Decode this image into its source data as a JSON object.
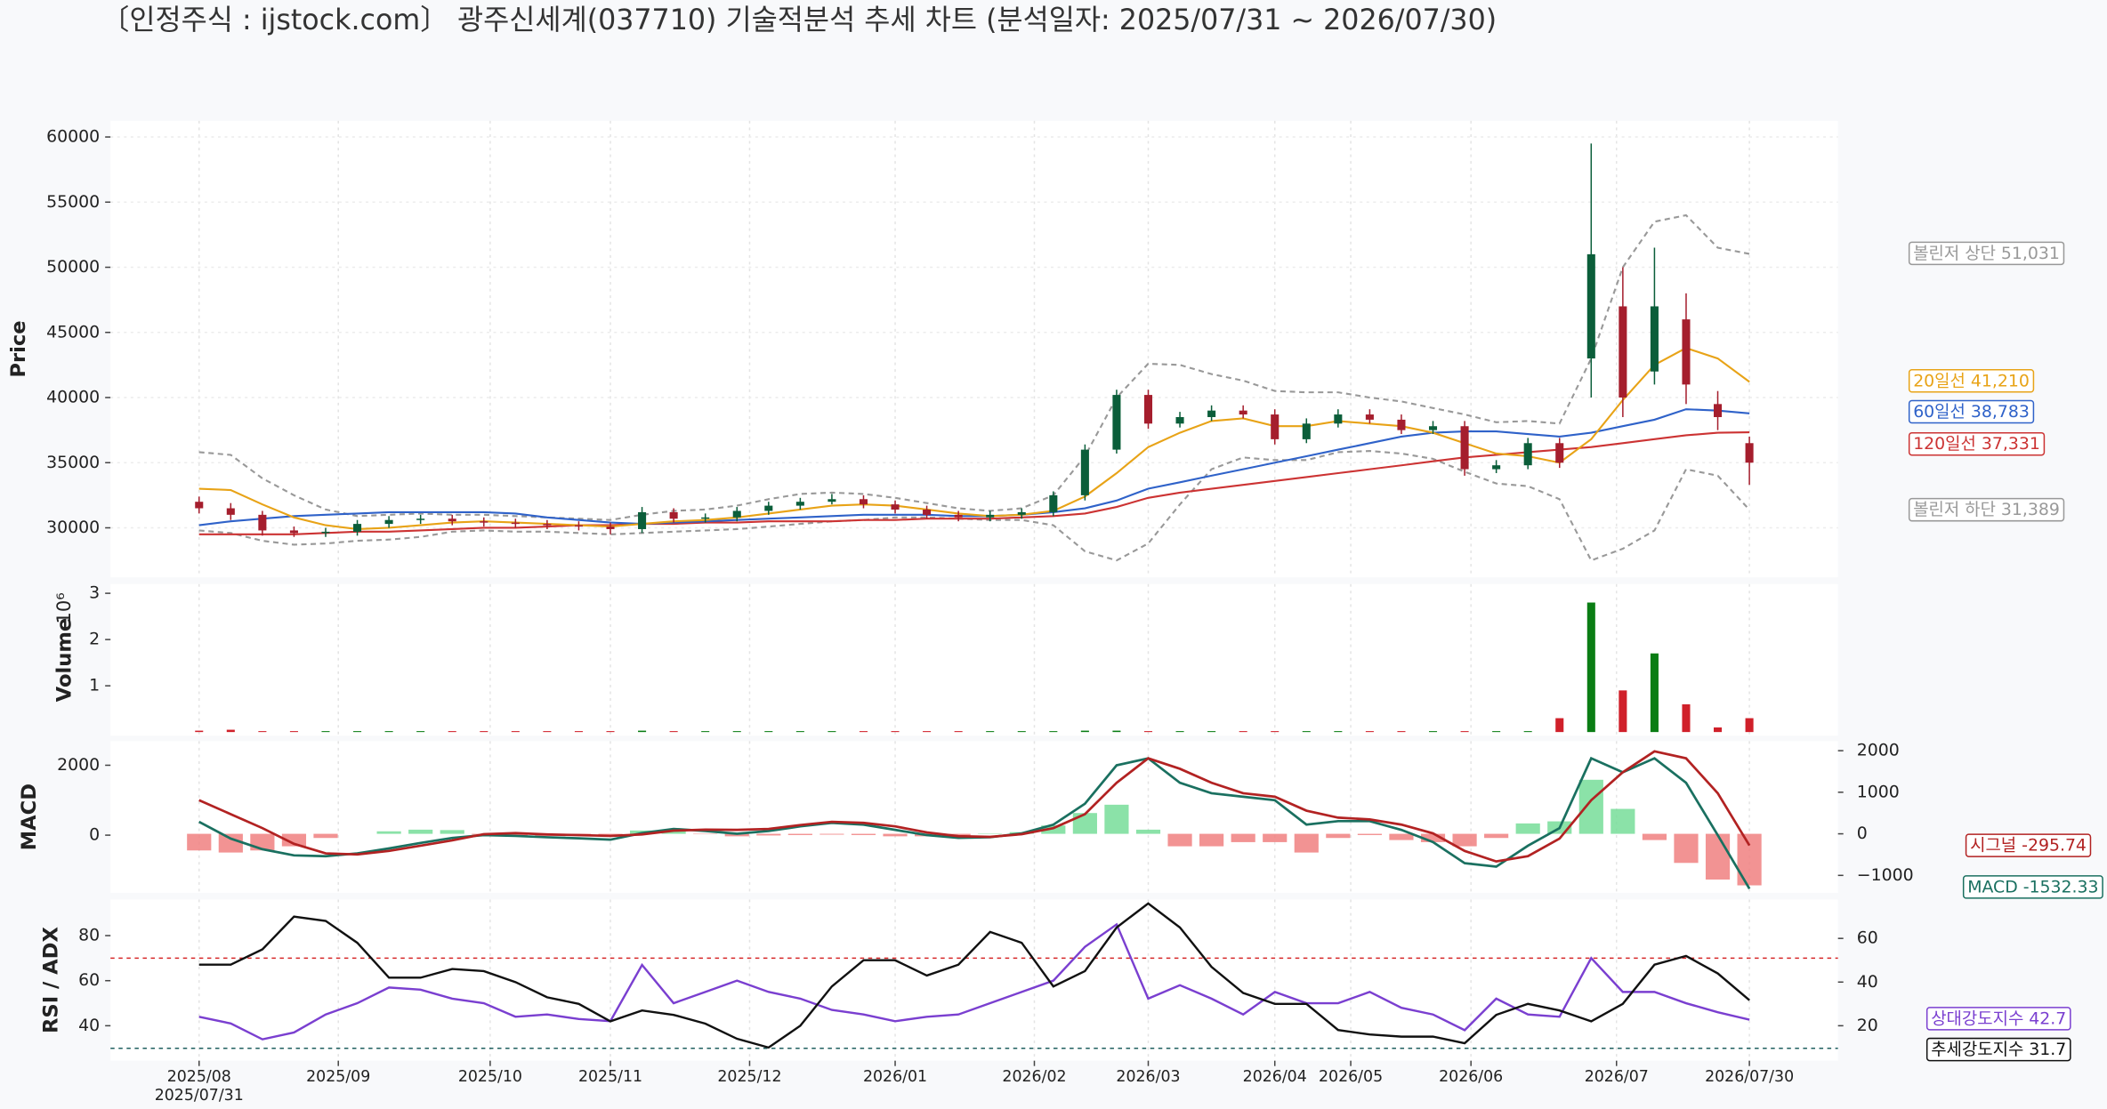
{
  "title": "〔인정주식 : ijstock.com〕 광주신세계(037710) 기술적분석 추세 차트 (분석일자: 2025/07/31 ~ 2026/07/30)",
  "chart_data": [
    {
      "type": "candlestick",
      "ylabel": "Price",
      "up_color": "#0b5e3a",
      "down_color": "#a51e2d",
      "x": [
        0,
        5,
        10,
        15,
        20,
        25,
        30,
        35,
        40,
        45,
        50,
        55,
        60,
        65,
        70,
        75,
        80,
        85,
        90,
        95,
        100,
        105,
        110,
        115,
        120,
        125,
        130,
        135,
        140,
        145,
        150,
        155,
        160,
        165,
        170,
        175,
        180,
        185,
        190,
        195,
        200,
        205,
        210,
        215,
        220,
        225,
        230,
        235,
        240,
        245
      ],
      "xlim": [
        -14,
        259
      ],
      "open": [
        32000,
        31500,
        31000,
        29800,
        29600,
        29700,
        30300,
        30600,
        30700,
        30500,
        30400,
        30300,
        30200,
        30100,
        29900,
        31200,
        30700,
        30800,
        31300,
        31700,
        32000,
        32200,
        31800,
        31400,
        31000,
        30800,
        31000,
        31200,
        32500,
        36000,
        40200,
        38000,
        38500,
        39000,
        38700,
        36800,
        38000,
        38700,
        38300,
        37500,
        37800,
        34500,
        34800,
        36500,
        43000,
        47000,
        42000,
        46000,
        39500,
        36500
      ],
      "high": [
        32400,
        31900,
        31300,
        30100,
        30000,
        30600,
        30900,
        31000,
        31000,
        30800,
        30700,
        30600,
        30500,
        30400,
        31600,
        31500,
        31100,
        31600,
        32000,
        32300,
        32600,
        32500,
        32100,
        31700,
        31300,
        31300,
        31500,
        32800,
        36400,
        40600,
        40600,
        38900,
        39400,
        39400,
        39100,
        38400,
        39100,
        39100,
        38700,
        38200,
        38200,
        35200,
        36900,
        36900,
        59500,
        50000,
        51500,
        48000,
        40500,
        37000
      ],
      "low": [
        31100,
        30600,
        29400,
        29300,
        29300,
        29400,
        30000,
        30300,
        30200,
        30100,
        30000,
        29900,
        29800,
        29500,
        29600,
        30400,
        30400,
        30500,
        31000,
        31400,
        31800,
        31500,
        31100,
        30700,
        30500,
        30500,
        30700,
        30900,
        32100,
        35700,
        37600,
        37700,
        38200,
        38400,
        36400,
        36500,
        37700,
        38000,
        37200,
        37200,
        34000,
        34200,
        34500,
        34600,
        40000,
        38500,
        41000,
        39500,
        37500,
        33300
      ],
      "close": [
        31500,
        31000,
        29800,
        29600,
        29700,
        30300,
        30600,
        30700,
        30500,
        30400,
        30300,
        30200,
        30100,
        29900,
        31200,
        30700,
        30800,
        31300,
        31700,
        32000,
        32200,
        31800,
        31400,
        31000,
        30800,
        31000,
        31200,
        32500,
        36000,
        40200,
        38000,
        38500,
        39000,
        38700,
        36800,
        38000,
        38700,
        38300,
        37500,
        37800,
        34500,
        34800,
        36500,
        35000,
        51000,
        40000,
        47000,
        41000,
        38500,
        35000
      ],
      "series": [
        {
          "color": "#999999",
          "dashed": true,
          "values": [
            35800,
            35600,
            33800,
            32500,
            31400,
            30900,
            31000,
            31100,
            31000,
            31000,
            30900,
            30800,
            30700,
            30600,
            31000,
            31300,
            31400,
            31700,
            32200,
            32600,
            32700,
            32600,
            32300,
            31900,
            31500,
            31300,
            31500,
            32500,
            35500,
            40000,
            42600,
            42500,
            41800,
            41300,
            40500,
            40400,
            40400,
            40000,
            39700,
            39200,
            38700,
            38100,
            38200,
            38000,
            43000,
            50000,
            53500,
            54000,
            51500,
            51031
          ]
        },
        {
          "color": "#999999",
          "dashed": true,
          "values": [
            29800,
            29600,
            29000,
            28700,
            28800,
            29000,
            29100,
            29300,
            29700,
            29800,
            29700,
            29700,
            29600,
            29500,
            29600,
            29700,
            29800,
            29900,
            30100,
            30300,
            30500,
            30600,
            30800,
            30800,
            30700,
            30600,
            30600,
            30200,
            28200,
            27500,
            28800,
            31800,
            34500,
            35400,
            35200,
            35200,
            35800,
            35900,
            35700,
            35300,
            34300,
            33400,
            33200,
            32200,
            27500,
            28400,
            29800,
            34500,
            34000,
            31389
          ]
        },
        {
          "color": "#cc3333",
          "values": [
            29500,
            29500,
            29500,
            29500,
            29600,
            29700,
            29700,
            29800,
            29900,
            30000,
            30000,
            30100,
            30200,
            30200,
            30300,
            30300,
            30400,
            30400,
            30500,
            30500,
            30500,
            30600,
            30600,
            30700,
            30700,
            30700,
            30800,
            30900,
            31100,
            31600,
            32300,
            32700,
            33000,
            33300,
            33600,
            33900,
            34200,
            34500,
            34800,
            35100,
            35400,
            35600,
            35800,
            36000,
            36200,
            36500,
            36800,
            37100,
            37300,
            37331
          ]
        },
        {
          "color": "#2f62c9",
          "values": [
            30200,
            30500,
            30700,
            30900,
            31000,
            31100,
            31200,
            31200,
            31200,
            31200,
            31100,
            30800,
            30600,
            30400,
            30300,
            30400,
            30500,
            30600,
            30700,
            30800,
            30900,
            31000,
            31000,
            31000,
            30900,
            30900,
            31000,
            31200,
            31500,
            32100,
            33000,
            33500,
            34000,
            34500,
            35000,
            35500,
            36000,
            36500,
            37000,
            37300,
            37400,
            37400,
            37200,
            37000,
            37300,
            37800,
            38300,
            39100,
            39000,
            38783
          ]
        },
        {
          "color": "#e8a317",
          "values": [
            33000,
            32900,
            31800,
            30800,
            30200,
            29900,
            30000,
            30200,
            30400,
            30500,
            30400,
            30300,
            30200,
            30100,
            30300,
            30500,
            30600,
            30800,
            31100,
            31400,
            31700,
            31800,
            31700,
            31400,
            31100,
            30900,
            31000,
            31300,
            32400,
            34200,
            36200,
            37300,
            38200,
            38400,
            37800,
            37800,
            38200,
            38000,
            37800,
            37300,
            36500,
            35700,
            35500,
            35000,
            36800,
            39800,
            42500,
            43800,
            43000,
            41210
          ]
        }
      ],
      "ylim": [
        26200,
        61240
      ],
      "yticks": [
        30000,
        35000,
        40000,
        45000,
        50000,
        55000,
        60000
      ],
      "annotations": [
        {
          "text": "볼린저 상단 51,031",
          "color": "#999999"
        },
        {
          "text": "20일선 41,210",
          "color": "#e8a317"
        },
        {
          "text": "60일선 38,783",
          "color": "#2f62c9"
        },
        {
          "text": "120일선 37,331",
          "color": "#cc3333"
        },
        {
          "text": "볼린저 하단 31,389",
          "color": "#999999"
        }
      ]
    },
    {
      "type": "volume",
      "ylabel": "Volume",
      "multiplier": "10⁶",
      "up_color": "#0a7d14",
      "down_color": "#d0202a",
      "values": [
        0.03,
        0.05,
        0.02,
        0.02,
        0.02,
        0.02,
        0.02,
        0.02,
        0.02,
        0.02,
        0.02,
        0.02,
        0.02,
        0.02,
        0.03,
        0.02,
        0.02,
        0.02,
        0.02,
        0.02,
        0.02,
        0.02,
        0.02,
        0.02,
        0.02,
        0.02,
        0.02,
        0.02,
        0.03,
        0.03,
        0.02,
        0.02,
        0.02,
        0.02,
        0.02,
        0.02,
        0.02,
        0.02,
        0.02,
        0.02,
        0.02,
        0.02,
        0.02,
        0.3,
        2.8,
        0.9,
        1.7,
        0.6,
        0.1,
        0.3
      ],
      "ylim": [
        -0.08,
        3.2
      ],
      "yticks": [
        1,
        2,
        3
      ]
    },
    {
      "type": "macd",
      "ylabel": "MACD",
      "series": [
        {
          "color": "#1a7060",
          "values": [
            380,
            -100,
            -400,
            -580,
            -600,
            -520,
            -380,
            -220,
            -80,
            0,
            -20,
            -60,
            -90,
            -130,
            60,
            180,
            120,
            40,
            120,
            250,
            350,
            300,
            150,
            0,
            -80,
            -60,
            50,
            300,
            900,
            2000,
            2200,
            1500,
            1200,
            1100,
            1000,
            300,
            400,
            400,
            150,
            -200,
            -800,
            -900,
            -300,
            200,
            2200,
            1800,
            2200,
            1500,
            0,
            -1532.33
          ]
        },
        {
          "color": "#b22222",
          "values": [
            1000,
            600,
            200,
            -250,
            -520,
            -550,
            -450,
            -300,
            -150,
            30,
            60,
            20,
            0,
            -20,
            20,
            130,
            160,
            150,
            180,
            290,
            380,
            350,
            250,
            80,
            -30,
            -50,
            30,
            200,
            600,
            1500,
            2200,
            1900,
            1500,
            1200,
            1100,
            700,
            500,
            450,
            300,
            50,
            -450,
            -750,
            -600,
            -100,
            1000,
            1800,
            2400,
            2200,
            1200,
            -295.74
          ]
        }
      ],
      "histogram": {
        "axis": "y2",
        "pos_color": "#77dd99",
        "neg_color": "#f08080",
        "values": [
          -400,
          -450,
          -400,
          -300,
          -100,
          0,
          60,
          100,
          90,
          -20,
          -40,
          -50,
          -50,
          -60,
          80,
          90,
          -10,
          -60,
          -40,
          -30,
          -20,
          -30,
          -60,
          -60,
          -40,
          10,
          40,
          200,
          500,
          700,
          100,
          -300,
          -300,
          -200,
          -200,
          -450,
          -100,
          -30,
          -150,
          -200,
          -300,
          -100,
          250,
          300,
          1300,
          600,
          -150,
          -700,
          -1100,
          -1240
        ]
      },
      "ylim": [
        -1650,
        2690
      ],
      "yticks": [
        0,
        2000
      ],
      "y2lim": [
        -1420,
        2230
      ],
      "y2ticks": [
        {
          "value": -1000,
          "label": "−1000"
        },
        0,
        1000,
        2000
      ],
      "annotations": [
        {
          "text": "시그널 -295.74",
          "color": "#b22222"
        },
        {
          "text": "MACD -1532.33",
          "color": "#1a7060"
        }
      ]
    },
    {
      "type": "rsi_adx",
      "ylabel": "RSI / ADX",
      "series": [
        {
          "color": "#7a3fd0",
          "values": [
            44,
            41,
            34,
            37,
            45,
            50,
            57,
            56,
            52,
            50,
            44,
            45,
            43,
            42,
            67,
            50,
            55,
            60,
            55,
            52,
            47,
            45,
            42,
            44,
            45,
            50,
            55,
            60,
            75,
            85,
            52,
            58,
            52,
            45,
            55,
            50,
            50,
            55,
            48,
            45,
            38,
            52,
            45,
            44,
            70,
            55,
            55,
            50,
            46,
            42.7
          ]
        },
        {
          "color": "#111111",
          "axis": "y2",
          "values": [
            48,
            48,
            55,
            70,
            68,
            58,
            42,
            42,
            46,
            45,
            40,
            33,
            30,
            22,
            27,
            25,
            21,
            14,
            10,
            20,
            38,
            50,
            50,
            43,
            48,
            63,
            58,
            38,
            45,
            65,
            76,
            65,
            47,
            35,
            30,
            30,
            18,
            16,
            15,
            15,
            12,
            25,
            30,
            27,
            22,
            30,
            48,
            52,
            44,
            31.7
          ]
        }
      ],
      "hlines": [
        {
          "value": 70,
          "color": "#d62728"
        },
        {
          "value": 30,
          "color": "#1f5f5f"
        }
      ],
      "ylim": [
        24.5,
        96
      ],
      "yticks": [
        40,
        60,
        80
      ],
      "y2lim": [
        4,
        77.8
      ],
      "y2ticks": [
        20,
        40,
        60
      ],
      "xticks": [
        {
          "value": 0,
          "label": "2025/08"
        },
        {
          "value": 22,
          "label": "2025/09"
        },
        {
          "value": 46,
          "label": "2025/10"
        },
        {
          "value": 65,
          "label": "2025/11"
        },
        {
          "value": 87,
          "label": "2025/12"
        },
        {
          "value": 110,
          "label": "2026/01"
        },
        {
          "value": 132,
          "label": "2026/02"
        },
        {
          "value": 150,
          "label": "2026/03"
        },
        {
          "value": 170,
          "label": "2026/04"
        },
        {
          "value": 182,
          "label": "2026/05"
        },
        {
          "value": 201,
          "label": "2026/06"
        },
        {
          "value": 224,
          "label": "2026/07"
        },
        {
          "value": 245,
          "label": "2026/07/30"
        }
      ],
      "x_start_label": {
        "value": 0,
        "label": "2025/07/31"
      },
      "annotations": [
        {
          "text": "상대강도지수 42.7",
          "color": "#7a3fd0"
        },
        {
          "text": "추세강도지수 31.7",
          "color": "#111111"
        }
      ]
    }
  ]
}
